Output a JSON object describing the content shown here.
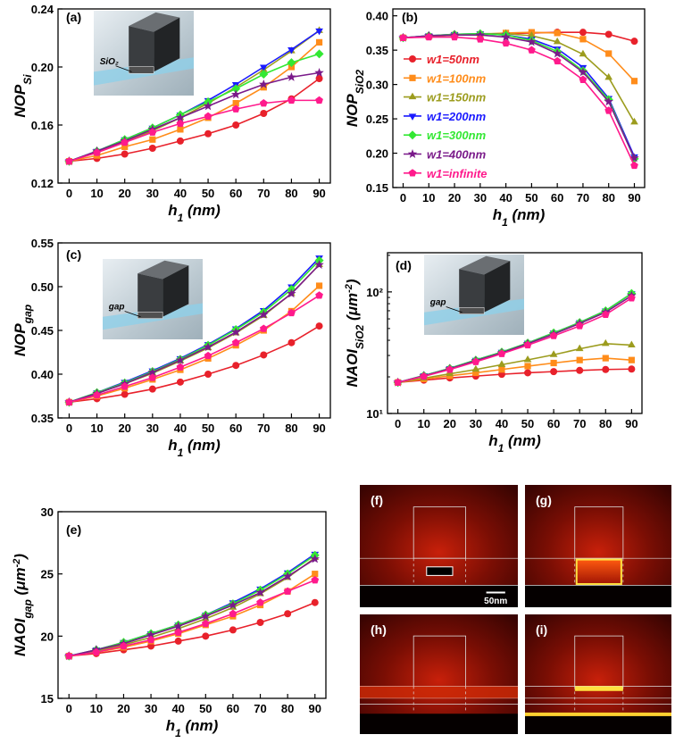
{
  "chart_data": [
    {
      "type": "line",
      "label": "(a)",
      "inset_label": "SiO₂",
      "ylabel": [
        {
          "t": "NOP"
        },
        {
          "t": "Si",
          "shift": "sub"
        }
      ],
      "xlabel": [
        {
          "t": "h"
        },
        {
          "t": "1",
          "shift": "sub"
        },
        {
          "t": " (nm)"
        }
      ],
      "x": [
        0,
        10,
        20,
        30,
        40,
        50,
        60,
        70,
        80,
        90
      ],
      "xlim": [
        -4,
        94
      ],
      "xticks": [
        0,
        10,
        20,
        30,
        40,
        50,
        60,
        70,
        80,
        90
      ],
      "ylim": [
        0.12,
        0.24
      ],
      "yticks": [
        0.12,
        0.16,
        {
          "value": 0.2,
          "label": "0.20"
        },
        0.24
      ],
      "series": [
        {
          "color": "#e8212b",
          "marker": "circle",
          "values": [
            0.135,
            0.137,
            0.14,
            0.144,
            0.149,
            0.154,
            0.16,
            0.168,
            0.178,
            0.192
          ]
        },
        {
          "color": "#ff8c1a",
          "marker": "square",
          "values": [
            0.135,
            0.139,
            0.145,
            0.15,
            0.157,
            0.165,
            0.175,
            0.186,
            0.2,
            0.217
          ]
        },
        {
          "color": "#9c9c1e",
          "marker": "triangle-up",
          "values": [
            0.135,
            0.141,
            0.148,
            0.156,
            0.165,
            0.175,
            0.186,
            0.198,
            0.211,
            0.225
          ]
        },
        {
          "color": "#1a1aff",
          "marker": "triangle-down",
          "values": [
            0.135,
            0.142,
            0.15,
            0.158,
            0.167,
            0.177,
            0.188,
            0.2,
            0.212,
            0.225
          ]
        },
        {
          "color": "#33e833",
          "marker": "diamond",
          "values": [
            0.135,
            0.142,
            0.15,
            0.158,
            0.167,
            0.176,
            0.185,
            0.195,
            0.203,
            0.209
          ]
        },
        {
          "color": "#7a1a8a",
          "marker": "star",
          "values": [
            0.135,
            0.142,
            0.149,
            0.157,
            0.165,
            0.173,
            0.181,
            0.188,
            0.193,
            0.196
          ]
        },
        {
          "color": "#ff1a8c",
          "marker": "pentagon",
          "values": [
            0.135,
            0.141,
            0.148,
            0.155,
            0.161,
            0.166,
            0.171,
            0.175,
            0.177,
            0.177
          ]
        }
      ]
    },
    {
      "type": "line",
      "label": "(b)",
      "legend": "center-left",
      "ylabel": [
        {
          "t": "NOP"
        },
        {
          "t": "SiO2",
          "shift": "sub"
        }
      ],
      "xlabel": [
        {
          "t": "h"
        },
        {
          "t": "1",
          "shift": "sub"
        },
        {
          "t": " (nm)"
        }
      ],
      "x": [
        0,
        10,
        20,
        30,
        40,
        50,
        60,
        70,
        80,
        90
      ],
      "xlim": [
        -4,
        94
      ],
      "xticks": [
        0,
        10,
        20,
        30,
        40,
        50,
        60,
        70,
        80,
        90
      ],
      "ylim": [
        0.15,
        0.41
      ],
      "yticks": [
        0.15,
        {
          "value": 0.2,
          "label": "0.20"
        },
        0.25,
        {
          "value": 0.3,
          "label": "0.30"
        },
        0.35,
        {
          "value": 0.4,
          "label": "0.40"
        }
      ],
      "series": [
        {
          "name": "w1=50nm",
          "color": "#e8212b",
          "marker": "circle",
          "values": [
            0.368,
            0.37,
            0.372,
            0.373,
            0.374,
            0.375,
            0.376,
            0.376,
            0.373,
            0.363
          ]
        },
        {
          "name": "w1=100nm",
          "color": "#ff8c1a",
          "marker": "square",
          "values": [
            0.368,
            0.37,
            0.372,
            0.373,
            0.375,
            0.376,
            0.375,
            0.366,
            0.345,
            0.305
          ]
        },
        {
          "name": "w1=150nm",
          "color": "#9c9c1e",
          "marker": "triangle-up",
          "values": [
            0.368,
            0.37,
            0.372,
            0.374,
            0.374,
            0.371,
            0.362,
            0.344,
            0.31,
            0.245
          ]
        },
        {
          "name": "w1=200nm",
          "color": "#1a1aff",
          "marker": "triangle-down",
          "values": [
            0.368,
            0.371,
            0.373,
            0.374,
            0.372,
            0.366,
            0.352,
            0.325,
            0.28,
            0.195
          ]
        },
        {
          "name": "w1=300nm",
          "color": "#33e833",
          "marker": "diamond",
          "values": [
            0.368,
            0.371,
            0.373,
            0.374,
            0.372,
            0.364,
            0.348,
            0.32,
            0.278,
            0.192
          ]
        },
        {
          "name": "w1=400nm",
          "color": "#7a1a8a",
          "marker": "star",
          "values": [
            0.368,
            0.371,
            0.372,
            0.372,
            0.369,
            0.362,
            0.345,
            0.318,
            0.275,
            0.193
          ]
        },
        {
          "name": "w1=infinite",
          "color": "#ff1a8c",
          "marker": "pentagon",
          "values": [
            0.368,
            0.369,
            0.369,
            0.366,
            0.36,
            0.35,
            0.334,
            0.307,
            0.262,
            0.182
          ]
        }
      ]
    },
    {
      "type": "line",
      "label": "(c)",
      "inset_label": "gap",
      "ylabel": [
        {
          "t": "NOP"
        },
        {
          "t": "gap",
          "shift": "sub"
        }
      ],
      "xlabel": [
        {
          "t": "h"
        },
        {
          "t": "1",
          "shift": "sub"
        },
        {
          "t": " (nm)"
        }
      ],
      "x": [
        0,
        10,
        20,
        30,
        40,
        50,
        60,
        70,
        80,
        90
      ],
      "xlim": [
        -4,
        94
      ],
      "xticks": [
        0,
        10,
        20,
        30,
        40,
        50,
        60,
        70,
        80,
        90
      ],
      "ylim": [
        0.35,
        0.55
      ],
      "yticks": [
        0.35,
        {
          "value": 0.4,
          "label": "0.40"
        },
        0.45,
        {
          "value": 0.5,
          "label": "0.50"
        },
        0.55
      ],
      "series": [
        {
          "color": "#e8212b",
          "marker": "circle",
          "values": [
            0.368,
            0.372,
            0.377,
            0.383,
            0.391,
            0.4,
            0.41,
            0.422,
            0.436,
            0.455
          ]
        },
        {
          "color": "#ff8c1a",
          "marker": "square",
          "values": [
            0.368,
            0.375,
            0.384,
            0.394,
            0.405,
            0.418,
            0.433,
            0.45,
            0.472,
            0.501
          ]
        },
        {
          "color": "#9c9c1e",
          "marker": "triangle-up",
          "values": [
            0.368,
            0.378,
            0.389,
            0.401,
            0.415,
            0.43,
            0.447,
            0.467,
            0.492,
            0.525
          ]
        },
        {
          "color": "#1a1aff",
          "marker": "triangle-down",
          "values": [
            0.368,
            0.379,
            0.391,
            0.404,
            0.418,
            0.434,
            0.452,
            0.473,
            0.5,
            0.533
          ]
        },
        {
          "color": "#33e833",
          "marker": "diamond",
          "values": [
            0.368,
            0.379,
            0.39,
            0.403,
            0.417,
            0.433,
            0.451,
            0.471,
            0.497,
            0.53
          ]
        },
        {
          "color": "#7a1a8a",
          "marker": "star",
          "values": [
            0.368,
            0.378,
            0.389,
            0.402,
            0.416,
            0.431,
            0.448,
            0.468,
            0.492,
            0.525
          ]
        },
        {
          "color": "#ff1a8c",
          "marker": "pentagon",
          "values": [
            0.368,
            0.376,
            0.386,
            0.396,
            0.408,
            0.421,
            0.436,
            0.452,
            0.47,
            0.49
          ]
        }
      ]
    },
    {
      "type": "line",
      "label": "(d)",
      "inset_label": "gap",
      "log_y": true,
      "ylabel": [
        {
          "t": "NAOI"
        },
        {
          "t": "SiO2",
          "shift": "sub"
        },
        {
          "t": " (μm"
        },
        {
          "t": "-2",
          "shift": "sup"
        },
        {
          "t": ")"
        }
      ],
      "xlabel": [
        {
          "t": "h"
        },
        {
          "t": "1",
          "shift": "sub"
        },
        {
          "t": " (nm)"
        }
      ],
      "x": [
        0,
        10,
        20,
        30,
        40,
        50,
        60,
        70,
        80,
        90
      ],
      "xlim": [
        -4,
        94
      ],
      "xticks": [
        0,
        10,
        20,
        30,
        40,
        50,
        60,
        70,
        80,
        90
      ],
      "ylim": [
        10,
        210
      ],
      "yticks": [
        {
          "value": 10,
          "label": "10¹"
        },
        {
          "value": 100,
          "label": "10²"
        }
      ],
      "series": [
        {
          "color": "#e8212b",
          "marker": "circle",
          "values": [
            18,
            18.8,
            19.6,
            20.3,
            21,
            21.6,
            22.1,
            22.6,
            23,
            23.2
          ]
        },
        {
          "color": "#ff8c1a",
          "marker": "square",
          "values": [
            18,
            19.2,
            20.4,
            21.6,
            23,
            24.5,
            26,
            27.5,
            28.5,
            27.5
          ]
        },
        {
          "color": "#9c9c1e",
          "marker": "triangle-up",
          "values": [
            18,
            19.5,
            21.2,
            23,
            25.2,
            27.6,
            30.4,
            34,
            37.5,
            36.5
          ]
        },
        {
          "color": "#1a1aff",
          "marker": "triangle-down",
          "values": [
            18,
            20.5,
            23.5,
            27.5,
            32,
            38,
            46,
            56,
            70,
            97
          ]
        },
        {
          "color": "#33e833",
          "marker": "diamond",
          "values": [
            18,
            20.5,
            23.5,
            27.5,
            32,
            38,
            46,
            56,
            70,
            97
          ]
        },
        {
          "color": "#7a1a8a",
          "marker": "star",
          "values": [
            18,
            20.4,
            23.3,
            27.2,
            31.5,
            37.5,
            45,
            55,
            68,
            93
          ]
        },
        {
          "color": "#ff1a8c",
          "marker": "pentagon",
          "values": [
            18,
            20.2,
            23,
            26.6,
            31,
            36.5,
            43.5,
            52.5,
            65,
            89
          ]
        }
      ]
    },
    {
      "type": "line",
      "label": "(e)",
      "ylabel": [
        {
          "t": "NAOI"
        },
        {
          "t": "gap",
          "shift": "sub"
        },
        {
          "t": " (μm"
        },
        {
          "t": "-2",
          "shift": "sup"
        },
        {
          "t": ")"
        }
      ],
      "xlabel": [
        {
          "t": "h"
        },
        {
          "t": "1",
          "shift": "sub"
        },
        {
          "t": " (nm)"
        }
      ],
      "x": [
        0,
        10,
        20,
        30,
        40,
        50,
        60,
        70,
        80,
        90
      ],
      "xlim": [
        -4,
        94
      ],
      "xticks": [
        0,
        10,
        20,
        30,
        40,
        50,
        60,
        70,
        80,
        90
      ],
      "ylim": [
        15,
        30
      ],
      "yticks": [
        15,
        20,
        25,
        30
      ],
      "series": [
        {
          "color": "#e8212b",
          "marker": "circle",
          "values": [
            18.4,
            18.6,
            18.9,
            19.2,
            19.6,
            20.0,
            20.5,
            21.1,
            21.8,
            22.7
          ]
        },
        {
          "color": "#ff8c1a",
          "marker": "square",
          "values": [
            18.4,
            18.7,
            19.1,
            19.6,
            20.2,
            20.9,
            21.6,
            22.5,
            23.6,
            25.0
          ]
        },
        {
          "color": "#9c9c1e",
          "marker": "triangle-up",
          "values": [
            18.4,
            18.8,
            19.3,
            19.9,
            20.6,
            21.4,
            22.3,
            23.4,
            24.7,
            26.3
          ]
        },
        {
          "color": "#1a1aff",
          "marker": "triangle-down",
          "values": [
            18.4,
            18.9,
            19.5,
            20.2,
            20.9,
            21.7,
            22.7,
            23.8,
            25.1,
            26.6
          ]
        },
        {
          "color": "#33e833",
          "marker": "diamond",
          "values": [
            18.4,
            18.9,
            19.5,
            20.2,
            20.9,
            21.7,
            22.6,
            23.7,
            25.0,
            26.5
          ]
        },
        {
          "color": "#7a1a8a",
          "marker": "star",
          "values": [
            18.4,
            18.9,
            19.4,
            20.1,
            20.8,
            21.6,
            22.5,
            23.5,
            24.8,
            26.2
          ]
        },
        {
          "color": "#ff1a8c",
          "marker": "pentagon",
          "values": [
            18.4,
            18.7,
            19.2,
            19.7,
            20.3,
            21.0,
            21.8,
            22.7,
            23.6,
            24.5
          ]
        }
      ]
    }
  ],
  "field_maps": {
    "labels": [
      "(f)",
      "(g)",
      "(h)",
      "(i)"
    ],
    "scale_bar": "50nm"
  }
}
